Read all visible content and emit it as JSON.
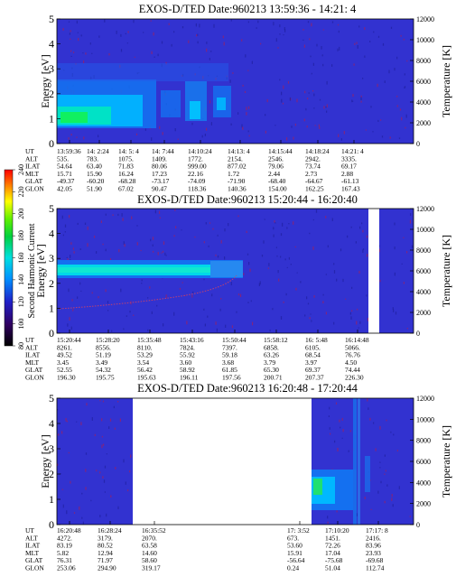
{
  "panels": [
    {
      "title": "EXOS-D/TED   Date:960213   13:59:36 - 14:21: 4",
      "ylabel_left": "Energy [eV]",
      "ylabel_right": "Temperature [K]",
      "ephemeris": {
        "labels": [
          "UT",
          "ALT",
          "ILAT",
          "MLT",
          "GLAT",
          "GLON"
        ],
        "columns": [
          [
            "13:59:36",
            "535.",
            "54.64",
            "15.71",
            "-49.37",
            "42.05"
          ],
          [
            "14: 2:24",
            "783.",
            "63.40",
            "15.90",
            "-60.20",
            "51.90"
          ],
          [
            "14: 5: 4",
            "1075.",
            "71.83",
            "16.24",
            "-68.28",
            "67.02"
          ],
          [
            "14: 7:44",
            "1409.",
            "80.06",
            "17.23",
            "-73.17",
            "90.47"
          ],
          [
            "14:10:24",
            "1772.",
            "999.00",
            "22.16",
            "-74.09",
            "118.36"
          ],
          [
            "14:13: 4",
            "2154.",
            "877.02",
            "1.72",
            "-71.90",
            "140.36"
          ],
          [
            "14:15:44",
            "2546.",
            "79.06",
            "2.44",
            "-68.40",
            "154.00"
          ],
          [
            "14:18:24",
            "2942.",
            "73.74",
            "2.73",
            "-64.67",
            "162.25"
          ],
          [
            "14:21: 4",
            "3335.",
            "69.17",
            "2.88",
            "-61.13",
            "167.43"
          ]
        ]
      }
    },
    {
      "title": "EXOS-D/TED   Date:960213   15:20:44 - 16:20:40",
      "ylabel_left": "Energy [eV]",
      "ylabel_right": "Temperature [K]",
      "ephemeris": {
        "labels": [
          "UT",
          "ALT",
          "ILAT",
          "MLT",
          "GLAT",
          "GLON"
        ],
        "columns": [
          [
            "15:20:44",
            "8261.",
            "49.52",
            "3.45",
            "52.55",
            "196.30"
          ],
          [
            "15:28:20",
            "8556.",
            "51.19",
            "3.49",
            "54.32",
            "195.75"
          ],
          [
            "15:35:48",
            "8110.",
            "53.29",
            "3.54",
            "56.42",
            "195.63"
          ],
          [
            "15:43:16",
            "7824.",
            "55.92",
            "3.60",
            "58.92",
            "196.11"
          ],
          [
            "15:50:44",
            "7397.",
            "59.18",
            "3.68",
            "61.85",
            "197.56"
          ],
          [
            "15:58:12",
            "6858.",
            "63.26",
            "3.79",
            "65.30",
            "200.71"
          ],
          [
            "16: 5:48",
            "6105.",
            "68.54",
            "3.97",
            "69.37",
            "207.37"
          ],
          [
            "16:14:48",
            "5066.",
            "76.76",
            "4.50",
            "74.44",
            "226.30"
          ]
        ]
      }
    },
    {
      "title": "EXOS-D/TED   Date:960213   16:20:48 - 17:20:44",
      "ylabel_left": "Energy [eV]",
      "ylabel_right": "Temperature [K]",
      "ephemeris": {
        "labels": [
          "UT",
          "ALT",
          "ILAT",
          "MLT",
          "GLAT",
          "GLON"
        ],
        "columns": [
          [
            "16:20:48",
            "4272.",
            "83.19",
            "5.82",
            "76.31",
            "253.06"
          ],
          [
            "16:28:24",
            "3179.",
            "80.52",
            "12.94",
            "71.97",
            "294.90"
          ],
          [
            "16:35:52",
            "2070.",
            "63.58",
            "14.60",
            "58.60",
            "319.17"
          ],
          [
            "17: 3:52",
            "673.",
            "53.60",
            "15.91",
            "-56.64",
            "0.24"
          ],
          [
            "17:10:20",
            "1451.",
            "72.26",
            "17.04",
            "-75.68",
            "51.04"
          ],
          [
            "17:17: 8",
            "2416.",
            "83.96",
            "23.93",
            "-69.68",
            "112.74"
          ]
        ]
      }
    }
  ],
  "colorbar": {
    "label": "Second Harmonic Current",
    "ticks": [
      "240",
      "220",
      "200",
      "180",
      "160",
      "140",
      "120",
      "100",
      "80"
    ]
  },
  "chart_data": [
    {
      "type": "heatmap",
      "title": "EXOS-D/TED   Date:960213   13:59:36 - 14:21: 4",
      "xlabel": "UT",
      "ylabel": "Energy [eV]",
      "ylabel_right": "Temperature [K]",
      "x_ticks": [
        "13:59:36",
        "14: 2:24",
        "14: 5: 4",
        "14: 7:44",
        "14:10:24",
        "14:13: 4",
        "14:15:44",
        "14:18:24",
        "14:21: 4"
      ],
      "ylim": [
        0,
        5
      ],
      "y_ticks": [
        0,
        1,
        2,
        3,
        4,
        5
      ],
      "ylim_right": [
        0,
        12000
      ],
      "y_right_ticks": [
        0,
        2000,
        4000,
        6000,
        8000,
        10000,
        12000
      ],
      "color_scale": {
        "label": "Second Harmonic Current",
        "min": 80,
        "max": 240
      },
      "background_level": 110,
      "data_gaps": []
    },
    {
      "type": "heatmap",
      "title": "EXOS-D/TED   Date:960213   15:20:44 - 16:20:40",
      "xlabel": "UT",
      "ylabel": "Energy [eV]",
      "ylabel_right": "Temperature [K]",
      "x_ticks": [
        "15:20:44",
        "15:28:20",
        "15:35:48",
        "15:43:16",
        "15:50:44",
        "15:58:12",
        "16: 5:48",
        "16:14:48"
      ],
      "ylim": [
        0,
        5
      ],
      "y_ticks": [
        0,
        1,
        2,
        3,
        4,
        5
      ],
      "ylim_right": [
        0,
        12000
      ],
      "y_right_ticks": [
        0,
        2000,
        4000,
        6000,
        8000,
        10000,
        12000
      ],
      "color_scale": {
        "label": "Second Harmonic Current",
        "min": 80,
        "max": 240
      },
      "background_level": 110,
      "data_gaps": [
        [
          0.91,
          0.94
        ]
      ]
    },
    {
      "type": "heatmap",
      "title": "EXOS-D/TED   Date:960213   16:20:48 - 17:20:44",
      "xlabel": "UT",
      "ylabel": "Energy [eV]",
      "ylabel_right": "Temperature [K]",
      "x_ticks": [
        "16:20:48",
        "16:28:24",
        "16:35:52",
        "17: 3:52",
        "17:10:20",
        "17:17: 8"
      ],
      "ylim": [
        0,
        5
      ],
      "y_ticks": [
        0,
        1,
        2,
        3,
        4,
        5
      ],
      "ylim_right": [
        0,
        12000
      ],
      "y_right_ticks": [
        0,
        2000,
        4000,
        6000,
        8000,
        10000,
        12000
      ],
      "color_scale": {
        "label": "Second Harmonic Current",
        "min": 80,
        "max": 240
      },
      "background_level": 110,
      "data_gaps": [
        [
          0.25,
          0.75
        ]
      ]
    }
  ],
  "colors": {
    "background_field": "#3232d0",
    "noise_dark": "#2020a0",
    "noise_red": "#a02060"
  }
}
